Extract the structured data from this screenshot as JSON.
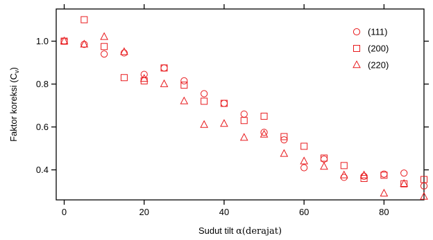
{
  "chart_data": {
    "type": "scatter",
    "title": "",
    "xlabel_prefix": "Sudut tilt ",
    "xlabel_symbol": "α",
    "xlabel_suffix": "(derajat)",
    "ylabel_main": "Faktor koreksi (C",
    "ylabel_sub": "v",
    "ylabel_close": ")",
    "xlim": [
      -2,
      90
    ],
    "ylim": [
      0.26,
      1.15
    ],
    "xticks": [
      0,
      20,
      40,
      60,
      80
    ],
    "xtick_labels": [
      "0",
      "20",
      "40",
      "60",
      "80"
    ],
    "yticks": [
      0.4,
      0.6,
      0.8,
      1.0
    ],
    "ytick_labels": [
      "0.4",
      "0.6",
      "0.8",
      "1.0"
    ],
    "grid": false,
    "legend_position": "top-right",
    "marker_color": "#e8191c",
    "series": [
      {
        "name": "(111)",
        "marker": "circle",
        "x": [
          0,
          5,
          10,
          15,
          20,
          25,
          30,
          35,
          40,
          45,
          50,
          55,
          60,
          65,
          70,
          75,
          80,
          85,
          90
        ],
        "y": [
          1.0,
          0.985,
          0.94,
          0.945,
          0.845,
          0.875,
          0.815,
          0.755,
          0.71,
          0.66,
          0.575,
          0.54,
          0.41,
          0.45,
          0.365,
          0.37,
          0.38,
          0.385,
          0.325
        ]
      },
      {
        "name": "(200)",
        "marker": "square",
        "x": [
          0,
          5,
          10,
          15,
          20,
          25,
          30,
          35,
          40,
          45,
          50,
          55,
          60,
          65,
          70,
          75,
          80,
          85,
          90
        ],
        "y": [
          1.0,
          1.1,
          0.975,
          0.83,
          0.815,
          0.875,
          0.795,
          0.72,
          0.71,
          0.63,
          0.65,
          0.555,
          0.51,
          0.455,
          0.42,
          0.36,
          0.375,
          0.335,
          0.355
        ]
      },
      {
        "name": "(220)",
        "marker": "triangle",
        "x": [
          0,
          5,
          10,
          15,
          20,
          25,
          30,
          35,
          40,
          45,
          50,
          55,
          60,
          65,
          70,
          75,
          80,
          85,
          90
        ],
        "y": [
          1.0,
          0.985,
          1.02,
          0.95,
          0.825,
          0.8,
          0.72,
          0.61,
          0.615,
          0.55,
          0.565,
          0.475,
          0.44,
          0.415,
          0.375,
          0.375,
          0.29,
          0.335,
          0.275
        ]
      }
    ]
  }
}
